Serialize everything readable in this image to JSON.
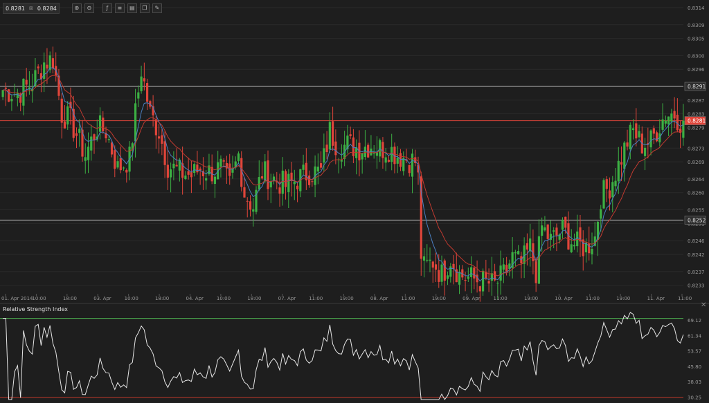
{
  "toolbar": {
    "bid": "0.8281",
    "ask": "0.8284",
    "buttons": [
      {
        "name": "zoom-in-icon",
        "glyph": "⊕"
      },
      {
        "name": "zoom-out-icon",
        "glyph": "⊖"
      },
      {
        "name": "indicator-icon",
        "glyph": "ƒ"
      },
      {
        "name": "settings-icon",
        "glyph": "≡"
      },
      {
        "name": "template-icon",
        "glyph": "▤"
      },
      {
        "name": "copy-icon",
        "glyph": "❐"
      },
      {
        "name": "draw-icon",
        "glyph": "✎"
      }
    ]
  },
  "colors": {
    "background": "#1e1e1e",
    "up": "#3cb043",
    "down": "#e0453a",
    "ma_fast": "#4a7fc0",
    "ma_slow": "#c03a30",
    "grid": "#2a2a2a",
    "hline": "#b5b5b5",
    "rsi_line": "#e6e6e6",
    "rsi_upper": "#4caf50",
    "rsi_lower": "#c0392b"
  },
  "price_axis": [
    "0.8314",
    "0.8309",
    "0.8305",
    "0.8300",
    "0.8296",
    "0.8291",
    "0.8287",
    "0.8283",
    "0.8279",
    "0.8273",
    "0.8269",
    "0.8264",
    "0.8260",
    "0.8255",
    "0.8251",
    "0.8246",
    "0.8242",
    "0.8237",
    "0.8233"
  ],
  "time_axis": [
    "01. Apr 2014",
    "10:00",
    "18:00",
    "03. Apr",
    "10:00",
    "18:00",
    "04. Apr",
    "10:00",
    "18:00",
    "07. Apr",
    "11:00",
    "19:00",
    "08. Apr",
    "11:00",
    "19:00",
    "09. Apr",
    "11:00",
    "19:00",
    "10. Apr",
    "11:00",
    "19:00",
    "11. Apr",
    "11:00"
  ],
  "price_labels": {
    "line1": "0.8291",
    "current": "0.8281",
    "line2": "0.8252"
  },
  "rsi": {
    "title": "Relative Strength Index",
    "axis": [
      "69.12",
      "61.34",
      "53.57",
      "45.80",
      "38.03",
      "30.25"
    ]
  },
  "chart_data": {
    "type": "candlestick",
    "instrument_quote": {
      "bid": 0.8281,
      "ask": 0.8284
    },
    "ylim": [
      0.82305,
      0.8315
    ],
    "horizontal_lines": [
      0.8291,
      0.8281,
      0.8252
    ],
    "key_points": [
      {
        "i": 0,
        "p": 0.829
      },
      {
        "i": 5,
        "p": 0.8289
      },
      {
        "i": 10,
        "p": 0.8292
      },
      {
        "i": 14,
        "p": 0.8298
      },
      {
        "i": 17,
        "p": 0.8299
      },
      {
        "i": 20,
        "p": 0.8283
      },
      {
        "i": 23,
        "p": 0.8281
      },
      {
        "i": 28,
        "p": 0.8271
      },
      {
        "i": 32,
        "p": 0.8279
      },
      {
        "i": 35,
        "p": 0.8278
      },
      {
        "i": 39,
        "p": 0.8267
      },
      {
        "i": 43,
        "p": 0.827
      },
      {
        "i": 47,
        "p": 0.8296
      },
      {
        "i": 50,
        "p": 0.8283
      },
      {
        "i": 53,
        "p": 0.8278
      },
      {
        "i": 56,
        "p": 0.8268
      },
      {
        "i": 60,
        "p": 0.8266
      },
      {
        "i": 64,
        "p": 0.8265
      },
      {
        "i": 67,
        "p": 0.8267
      },
      {
        "i": 70,
        "p": 0.8266
      },
      {
        "i": 74,
        "p": 0.8267
      },
      {
        "i": 77,
        "p": 0.8262
      },
      {
        "i": 80,
        "p": 0.8271
      },
      {
        "i": 82,
        "p": 0.826
      },
      {
        "i": 85,
        "p": 0.8256
      },
      {
        "i": 88,
        "p": 0.8266
      },
      {
        "i": 92,
        "p": 0.8264
      },
      {
        "i": 96,
        "p": 0.8262
      },
      {
        "i": 100,
        "p": 0.8264
      },
      {
        "i": 104,
        "p": 0.8266
      },
      {
        "i": 108,
        "p": 0.8266
      },
      {
        "i": 111,
        "p": 0.8278
      },
      {
        "i": 114,
        "p": 0.8273
      },
      {
        "i": 117,
        "p": 0.8274
      },
      {
        "i": 121,
        "p": 0.8273
      },
      {
        "i": 125,
        "p": 0.8274
      },
      {
        "i": 128,
        "p": 0.8273
      },
      {
        "i": 131,
        "p": 0.8273
      },
      {
        "i": 134,
        "p": 0.8271
      },
      {
        "i": 137,
        "p": 0.827
      },
      {
        "i": 140,
        "p": 0.8269
      },
      {
        "i": 141,
        "p": 0.8264
      },
      {
        "i": 142,
        "p": 0.8242
      },
      {
        "i": 143,
        "p": 0.8238
      },
      {
        "i": 146,
        "p": 0.824
      },
      {
        "i": 149,
        "p": 0.8236
      },
      {
        "i": 152,
        "p": 0.8241
      },
      {
        "i": 155,
        "p": 0.8236
      },
      {
        "i": 159,
        "p": 0.8235
      },
      {
        "i": 163,
        "p": 0.8234
      },
      {
        "i": 167,
        "p": 0.8233
      },
      {
        "i": 170,
        "p": 0.8236
      },
      {
        "i": 173,
        "p": 0.8241
      },
      {
        "i": 176,
        "p": 0.8239
      },
      {
        "i": 179,
        "p": 0.8244
      },
      {
        "i": 181,
        "p": 0.8237
      },
      {
        "i": 183,
        "p": 0.825
      },
      {
        "i": 186,
        "p": 0.8246
      },
      {
        "i": 190,
        "p": 0.8249
      },
      {
        "i": 194,
        "p": 0.8245
      },
      {
        "i": 198,
        "p": 0.8244
      },
      {
        "i": 201,
        "p": 0.8247
      },
      {
        "i": 203,
        "p": 0.8259
      },
      {
        "i": 206,
        "p": 0.8262
      },
      {
        "i": 209,
        "p": 0.8268
      },
      {
        "i": 212,
        "p": 0.8275
      },
      {
        "i": 214,
        "p": 0.8278
      },
      {
        "i": 217,
        "p": 0.8274
      },
      {
        "i": 220,
        "p": 0.8275
      },
      {
        "i": 223,
        "p": 0.828
      },
      {
        "i": 225,
        "p": 0.8283
      },
      {
        "i": 228,
        "p": 0.8283
      },
      {
        "i": 230,
        "p": 0.8281
      }
    ],
    "rsi_levels": {
      "upper": 70,
      "lower": 30
    },
    "rsi_ylim": [
      29,
      73
    ]
  }
}
